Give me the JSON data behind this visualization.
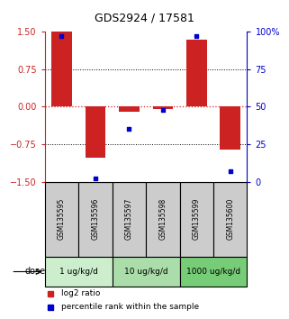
{
  "title": "GDS2924 / 17581",
  "samples": [
    "GSM135595",
    "GSM135596",
    "GSM135597",
    "GSM135598",
    "GSM135599",
    "GSM135600"
  ],
  "log2_ratio": [
    1.5,
    -1.02,
    -0.1,
    -0.05,
    1.35,
    -0.85
  ],
  "percentile_rank": [
    97,
    2,
    35,
    48,
    97,
    7
  ],
  "bar_color": "#cc2222",
  "dot_color": "#0000cc",
  "left_ylim": [
    -1.5,
    1.5
  ],
  "right_ylim": [
    0,
    100
  ],
  "left_yticks": [
    -1.5,
    -0.75,
    0,
    0.75,
    1.5
  ],
  "right_yticks": [
    0,
    25,
    50,
    75,
    100
  ],
  "right_yticklabels": [
    "0",
    "25",
    "50",
    "75",
    "100%"
  ],
  "hlines_dotted": [
    -0.75,
    0.75
  ],
  "dose_groups": [
    {
      "label": "1 ug/kg/d",
      "samples": [
        0,
        1
      ],
      "color": "#cceecc"
    },
    {
      "label": "10 ug/kg/d",
      "samples": [
        2,
        3
      ],
      "color": "#aaddaa"
    },
    {
      "label": "1000 ug/kg/d",
      "samples": [
        4,
        5
      ],
      "color": "#77cc77"
    }
  ],
  "dose_label": "dose",
  "sample_box_color": "#cccccc",
  "legend_red_label": "log2 ratio",
  "legend_blue_label": "percentile rank within the sample",
  "bar_width": 0.6
}
